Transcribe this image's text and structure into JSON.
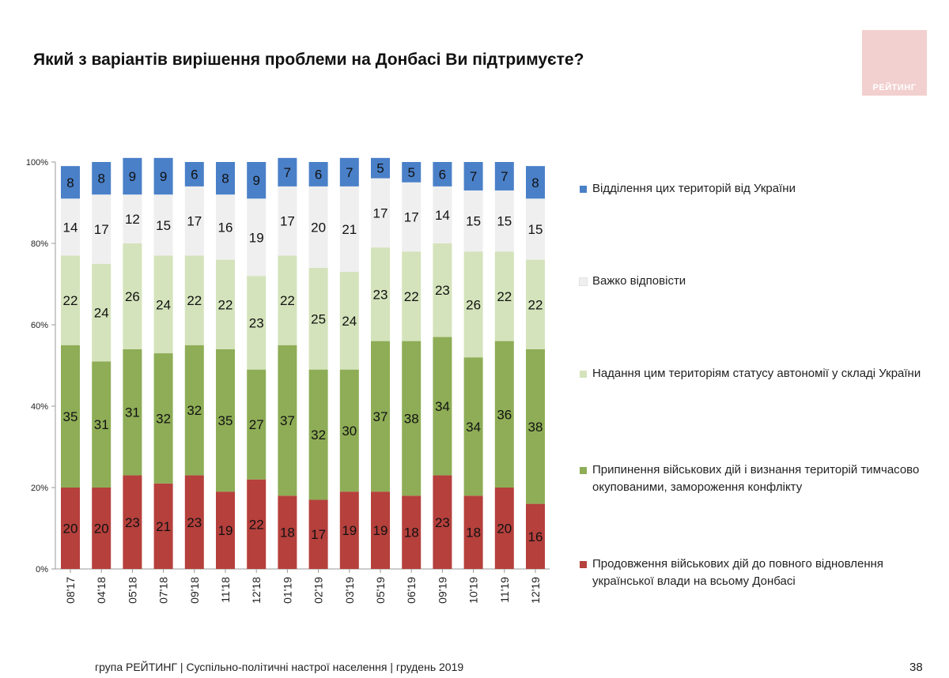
{
  "title": "Який з варіантів вирішення проблеми на Донбасі Ви підтримуєте?",
  "logo": {
    "text": "РЕЙТИНГ",
    "color": "#f2d0cf"
  },
  "footer": "група РЕЙТИНГ | Суспільно-політичні настрої населення  | грудень 2019",
  "page_number": "38",
  "chart_data": {
    "type": "bar",
    "stacked": true,
    "orientation": "vertical",
    "categories": [
      "08'17",
      "04'18",
      "05'18",
      "07'18",
      "09'18",
      "11'18",
      "12'18",
      "01'19",
      "02'19",
      "03'19",
      "05'19",
      "06'19",
      "09'19",
      "10'19",
      "11'19",
      "12'19"
    ],
    "yticks": [
      "0%",
      "20%",
      "40%",
      "60%",
      "80%",
      "100%"
    ],
    "ylim": [
      0,
      100
    ],
    "grid": false,
    "legend_position": "right",
    "series": [
      {
        "name": "Продовження військових дій до повного відновлення української влади на всьому Донбасі",
        "color": "#b5403c",
        "values": [
          20,
          20,
          23,
          21,
          23,
          19,
          22,
          18,
          17,
          19,
          19,
          18,
          23,
          18,
          20,
          16
        ]
      },
      {
        "name": "Припинення військових дій і визнання територій тимчасово окупованими, замороження конфлікту",
        "color": "#8ead56",
        "values": [
          35,
          31,
          31,
          32,
          32,
          35,
          27,
          37,
          32,
          30,
          37,
          38,
          34,
          34,
          36,
          38
        ]
      },
      {
        "name": "Надання цим територіям статусу автономії у складі України",
        "color": "#d4e3bb",
        "values": [
          22,
          24,
          26,
          24,
          22,
          22,
          23,
          22,
          25,
          24,
          23,
          22,
          23,
          26,
          22,
          22
        ]
      },
      {
        "name": "Важко відповісти",
        "color": "#efeff0",
        "values": [
          14,
          17,
          12,
          15,
          17,
          16,
          19,
          17,
          20,
          21,
          17,
          17,
          14,
          15,
          15,
          15
        ]
      },
      {
        "name": "Відділення цих територій від України",
        "color": "#4a80c8",
        "values": [
          8,
          8,
          9,
          9,
          6,
          8,
          9,
          7,
          6,
          7,
          5,
          5,
          6,
          7,
          7,
          8
        ]
      }
    ],
    "legend_order": [
      4,
      3,
      2,
      1,
      0
    ]
  }
}
